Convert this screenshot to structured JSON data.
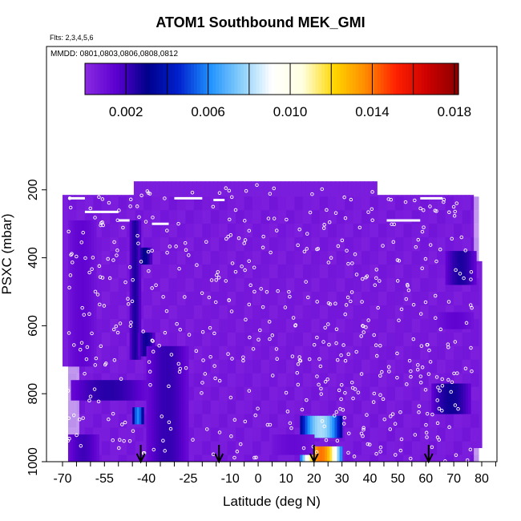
{
  "chart_data": {
    "type": "heatmap",
    "title": "ATOM1 Southbound MEK_GMI",
    "subtitle": "Flts: 2,3,4,5,6",
    "annotation": "MMDD: 0801,0803,0806,0808,0812",
    "xlabel": "Latitude (deg N)",
    "ylabel": "PSXC (mbar)",
    "xlim": [
      -70,
      85
    ],
    "ylim": [
      1000,
      75
    ],
    "y_reversed": true,
    "x_ticks": [
      -70,
      -55,
      -40,
      -25,
      -10,
      0,
      10,
      20,
      30,
      40,
      50,
      60,
      70,
      80
    ],
    "y_ticks": [
      200,
      400,
      600,
      800,
      1000
    ],
    "colorbar": {
      "ticks": [
        0.002,
        0.006,
        0.01,
        0.014,
        0.018
      ],
      "range": [
        0.0,
        0.0182
      ],
      "colors": [
        "#8a2be2",
        "#5d00d0",
        "#00008b",
        "#0020cc",
        "#1e90ff",
        "#87cefa",
        "#ffffff",
        "#ffffe0",
        "#ffd700",
        "#ff8c00",
        "#ff2000",
        "#cc0000",
        "#8b0000"
      ]
    },
    "background_value": 0.0005,
    "enhanced_regions": [
      {
        "lat": [
          -68,
          -58
        ],
        "p": [
          290,
          720
        ],
        "value": 0.0014
      },
      {
        "lat": [
          -46,
          -42
        ],
        "p": [
          290,
          700
        ],
        "value": 0.0026
      },
      {
        "lat": [
          -43,
          -38
        ],
        "p": [
          370,
          420
        ],
        "value": 0.003
      },
      {
        "lat": [
          -43,
          -37
        ],
        "p": [
          620,
          690
        ],
        "value": 0.0028
      },
      {
        "lat": [
          -67,
          -40
        ],
        "p": [
          760,
          820
        ],
        "value": 0.0024
      },
      {
        "lat": [
          -40,
          -25
        ],
        "p": [
          660,
          1000
        ],
        "value": 0.0022
      },
      {
        "lat": [
          -45,
          -41
        ],
        "p": [
          840,
          890
        ],
        "value": 0.006
      },
      {
        "lat": [
          -68,
          -57
        ],
        "p": [
          920,
          1000
        ],
        "value": 0.002
      },
      {
        "lat": [
          15,
          30
        ],
        "p": [
          865,
          930
        ],
        "value": 0.008
      },
      {
        "lat": [
          15,
          30
        ],
        "p": [
          955,
          1000
        ],
        "value": 0.014
      },
      {
        "lat": [
          5,
          20
        ],
        "p": [
          920,
          980
        ],
        "value": 0.0012
      },
      {
        "lat": [
          62,
          76
        ],
        "p": [
          770,
          860
        ],
        "value": 0.0028
      },
      {
        "lat": [
          67,
          78
        ],
        "p": [
          380,
          480
        ],
        "value": 0.0026
      },
      {
        "lat": [
          64,
          77
        ],
        "p": [
          560,
          610
        ],
        "value": 0.0014
      }
    ],
    "flight_arrows_lat": [
      -42,
      -14,
      20,
      61
    ],
    "colorbar_ticks_text": [
      "0.002",
      "0.006",
      "0.010",
      "0.014",
      "0.018"
    ]
  }
}
